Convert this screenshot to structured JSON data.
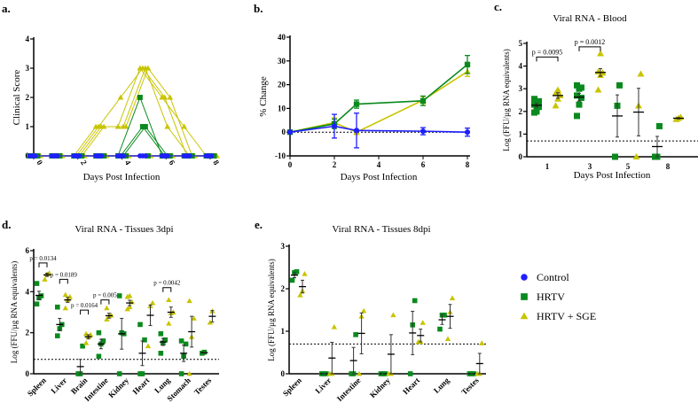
{
  "colors": {
    "control": "#1f1fff",
    "hrtv": "#0a8a1e",
    "sge": "#c8c400"
  },
  "legend": {
    "control": "Control",
    "hrtv": "HRTV",
    "sge": "HRTV + SGE"
  },
  "chart_data": [
    {
      "panel": "a.",
      "type": "line",
      "xlabel": "Days Post Infection",
      "ylabel": "Clinical Score",
      "xlim": [
        0,
        8
      ],
      "ylim": [
        0,
        4
      ],
      "xticks": [
        "0",
        "2",
        "4",
        "6",
        "8"
      ],
      "yticks": [
        "0",
        "1",
        "2",
        "3",
        "4"
      ],
      "x": [
        0,
        1,
        2,
        3,
        4,
        5,
        6,
        7,
        8
      ],
      "series": [
        {
          "group": "sge",
          "individuals": [
            [
              0,
              0,
              0,
              1,
              1,
              3,
              2,
              1,
              0
            ],
            [
              0,
              0,
              0,
              1,
              2,
              3,
              2,
              0,
              0
            ],
            [
              0,
              0,
              0,
              1,
              1,
              3,
              1,
              0,
              0
            ],
            [
              0,
              0,
              0,
              1,
              1,
              3,
              2,
              0,
              0
            ],
            [
              0,
              0,
              0,
              0,
              0,
              0,
              0,
              0,
              0
            ]
          ]
        },
        {
          "group": "hrtv",
          "individuals": [
            [
              0,
              0,
              0,
              0,
              0,
              2,
              0,
              0,
              0
            ],
            [
              0,
              0,
              0,
              0,
              0,
              1,
              0,
              0,
              0
            ],
            [
              0,
              0,
              0,
              0,
              0,
              1,
              0,
              0,
              0
            ],
            [
              0,
              0,
              0,
              0,
              0,
              0,
              0,
              0,
              0
            ]
          ]
        },
        {
          "group": "control",
          "individuals": [
            [
              0,
              0,
              0,
              0,
              0,
              0,
              0,
              0,
              0
            ],
            [
              0,
              0,
              0,
              0,
              0,
              0,
              0,
              0,
              0
            ],
            [
              0,
              0,
              0,
              0,
              0,
              0,
              0,
              0,
              0
            ]
          ]
        }
      ]
    },
    {
      "panel": "b.",
      "type": "line",
      "xlabel": "Days Post Infection",
      "ylabel": "% Change",
      "xlim": [
        0,
        8
      ],
      "ylim": [
        -10,
        40
      ],
      "xticks": [
        "0",
        "2",
        "4",
        "6",
        "8"
      ],
      "yticks": [
        "-10",
        "0",
        "10",
        "20",
        "30",
        "40"
      ],
      "reference_line": 0,
      "series": [
        {
          "group": "sge",
          "x": [
            0,
            2,
            3,
            6,
            8
          ],
          "mean": [
            0,
            4,
            0,
            13.5,
            25.5
          ],
          "err": [
            0,
            2,
            1,
            1.5,
            2
          ]
        },
        {
          "group": "hrtv",
          "x": [
            0,
            2,
            3,
            6,
            8
          ],
          "mean": [
            0,
            3.5,
            11.8,
            13.2,
            28.5
          ],
          "err": [
            0,
            2,
            1.7,
            2,
            3.8
          ]
        },
        {
          "group": "control",
          "x": [
            0,
            2,
            3,
            6,
            8
          ],
          "mean": [
            0,
            2.5,
            0.7,
            0.4,
            0
          ],
          "err": [
            0,
            5,
            7.3,
            1.5,
            1.7
          ]
        }
      ]
    },
    {
      "panel": "c.",
      "type": "scatter",
      "title": "Viral RNA - Blood",
      "xlabel": "Days Post Infection",
      "ylabel": "Log (FFU/µg RNA equivalents)",
      "ylim": [
        0,
        5
      ],
      "yticks": [
        "0",
        "1",
        "2",
        "3",
        "4",
        "5"
      ],
      "detection_limit": 0.7,
      "categories": [
        "1",
        "3",
        "5",
        "8"
      ],
      "hrtv": [
        [
          1.95,
          2.1,
          2.2,
          2.3,
          2.35,
          2.45,
          2.55,
          2.0
        ],
        [
          1.8,
          2.3,
          2.6,
          2.7,
          3.0,
          3.05,
          3.15
        ],
        [
          0,
          2.25,
          3.15
        ],
        [
          0,
          0,
          1.35
        ]
      ],
      "hrtv_mean": [
        2.27,
        2.63,
        1.8,
        0.45
      ],
      "hrtv_sem": [
        0.08,
        0.17,
        0.93,
        0.45
      ],
      "sge": [
        [
          2.25,
          2.55,
          2.7,
          2.8,
          2.95
        ],
        [
          2.95,
          3.6,
          3.7,
          3.75,
          4.55
        ],
        [
          0,
          2.25,
          3.65
        ],
        [
          1.65,
          1.7,
          1.75
        ]
      ],
      "sge_mean": [
        2.7,
        3.72,
        1.97,
        1.7
      ],
      "sge_sem": [
        0.12,
        0.17,
        1.05,
        0.03
      ],
      "comparisons": [
        {
          "category": 0,
          "y": 4.4,
          "label": "p = 0.0095"
        },
        {
          "category": 1,
          "y": 4.85,
          "label": "p = 0.0012"
        }
      ]
    },
    {
      "panel": "d.",
      "type": "scatter",
      "title": "Viral RNA - Tissues 3dpi",
      "ylabel": "Log (FFU/µg RNA equivalents)",
      "ylim": [
        0,
        6
      ],
      "yticks": [
        "0",
        "2",
        "4",
        "6"
      ],
      "detection_limit": 0.7,
      "categories": [
        "Spleen",
        "Liver",
        "Brain",
        "Intestine",
        "Kidney",
        "Heart",
        "Lung",
        "Stomach",
        "Testes"
      ],
      "hrtv": [
        [
          3.4,
          3.7,
          3.8,
          4.4
        ],
        [
          1.85,
          2.2,
          2.4,
          3.25
        ],
        [
          0,
          0,
          1.35
        ],
        [
          0.85,
          1.45,
          1.6,
          2.0
        ],
        [
          0,
          2.0,
          1.95,
          3.8
        ],
        [
          0,
          0,
          1.65,
          2.4
        ],
        [
          1.0,
          1.5,
          1.65,
          1.95
        ],
        [
          0,
          0.85,
          1.45,
          1.6
        ],
        [
          1.0,
          1.05
        ]
      ],
      "hrtv_mean": [
        3.82,
        2.4,
        0.35,
        1.45,
        1.95,
        1.0,
        1.55,
        1.0,
        1.03
      ],
      "hrtv_sem": [
        0.2,
        0.3,
        0.35,
        0.23,
        0.75,
        0.6,
        0.17,
        0.4,
        0.03
      ],
      "sge": [
        [
          4.6,
          4.85,
          4.9
        ],
        [
          3.2,
          3.6,
          3.75,
          3.85
        ],
        [
          1.5,
          1.8,
          1.9,
          1.95
        ],
        [
          2.65,
          2.8,
          2.85,
          3.2
        ],
        [
          3.15,
          3.25,
          3.5,
          3.75,
          3.8
        ],
        [
          1.35,
          3.3,
          3.45
        ],
        [
          2.45,
          2.95,
          3.0,
          3.6
        ],
        [
          0,
          1.8,
          2.7,
          3.55
        ],
        [
          2.5,
          3.05
        ]
      ],
      "sge_mean": [
        4.82,
        3.6,
        1.8,
        2.83,
        3.45,
        2.85,
        3.0,
        2.05,
        2.8
      ],
      "sge_sem": [
        0.08,
        0.12,
        0.1,
        0.12,
        0.13,
        0.5,
        0.25,
        0.75,
        0.28
      ],
      "comparisons": [
        {
          "category": 0,
          "y": 5.4,
          "label": "p = 0.0134"
        },
        {
          "category": 1,
          "y": 4.6,
          "label": "p = 0.0189"
        },
        {
          "category": 2,
          "y": 3.1,
          "label": "p = 0.0164"
        },
        {
          "category": 3,
          "y": 3.6,
          "label": "p = 0.005"
        },
        {
          "category": 6,
          "y": 4.2,
          "label": "p = 0.0042"
        }
      ]
    },
    {
      "panel": "e.",
      "type": "scatter",
      "title": "Viral RNA - Tissues 8dpi",
      "ylabel": "Log (FFU/µg RNA equivalents)",
      "ylim": [
        0,
        3
      ],
      "yticks": [
        "0",
        "1",
        "2",
        "3"
      ],
      "detection_limit": 0.7,
      "categories": [
        "Spleen",
        "Liver",
        "Intestine",
        "Kidney",
        "Heart",
        "Lung",
        "Testes"
      ],
      "hrtv": [
        [
          2.2,
          2.38,
          2.4
        ],
        [
          0,
          0,
          0
        ],
        [
          0,
          0,
          0.92
        ],
        [
          0,
          0,
          0
        ],
        [
          0,
          1.15,
          1.72
        ],
        [
          1.05,
          1.38,
          1.38
        ],
        [
          0,
          0,
          0
        ]
      ],
      "hrtv_mean": [
        2.32,
        0,
        0.31,
        0,
        0.96,
        1.27,
        0
      ],
      "hrtv_sem": [
        0.06,
        0,
        0.31,
        0,
        0.51,
        0.11,
        0
      ],
      "sge": [
        [
          1.85,
          1.95,
          2.35
        ],
        [
          0,
          0,
          1.1
        ],
        [
          0,
          1.35,
          1.48
        ],
        [
          0,
          0,
          1.38
        ],
        [
          0.75,
          0.75,
          1.2
        ],
        [
          0.82,
          1.45,
          1.78
        ],
        [
          0,
          0,
          0.72
        ]
      ],
      "sge_mean": [
        2.05,
        0.37,
        0.95,
        0.46,
        0.9,
        1.35,
        0.24
      ],
      "sge_sem": [
        0.15,
        0.37,
        0.48,
        0.46,
        0.15,
        0.28,
        0.24
      ],
      "comparisons": []
    }
  ]
}
